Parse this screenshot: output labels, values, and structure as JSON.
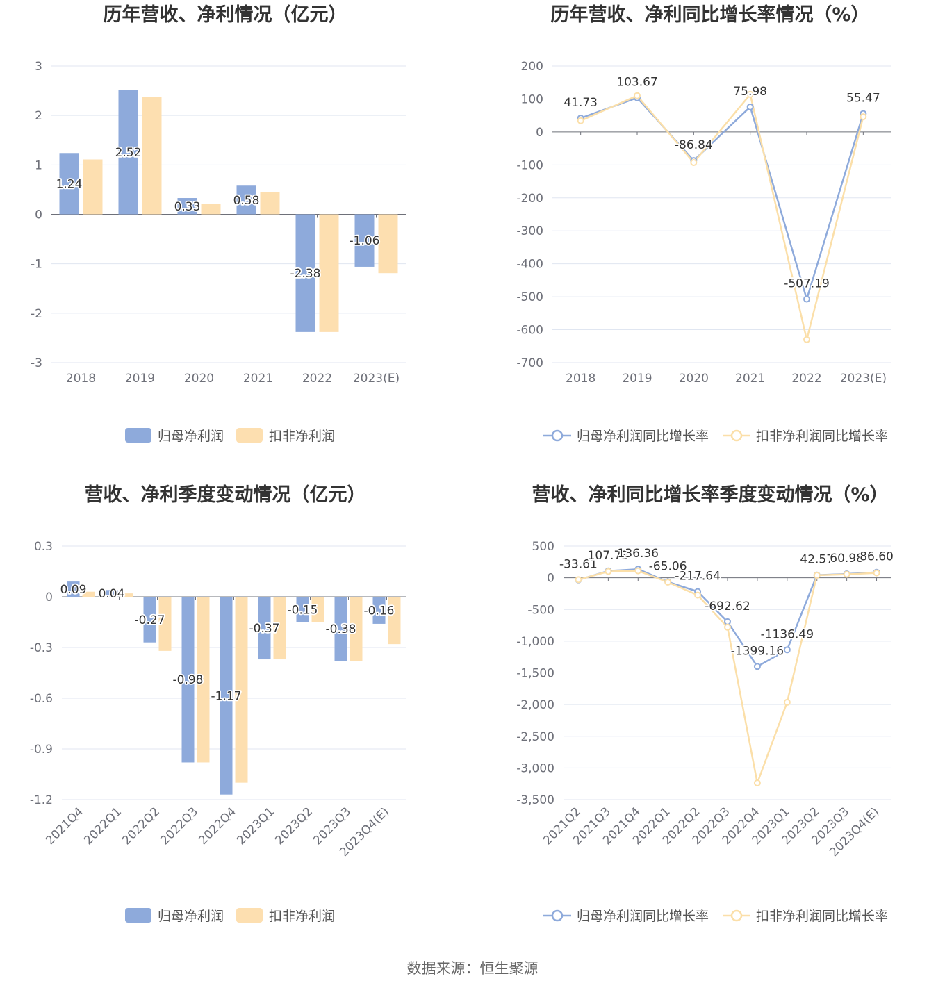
{
  "chart_data": [
    {
      "type": "bar",
      "title": "历年营收、净利情况（亿元）",
      "categories": [
        "2018",
        "2019",
        "2020",
        "2021",
        "2022",
        "2023(E)"
      ],
      "ylim": [
        -3,
        3
      ],
      "yticks": [
        "3",
        "2",
        "1",
        "0",
        "-1",
        "-2",
        "-3"
      ],
      "grid": true,
      "legend": "bottom",
      "series": [
        {
          "name": "归母净利润",
          "color": "#8eaadb",
          "data_labels": true,
          "values": [
            1.24,
            2.52,
            0.33,
            0.58,
            -2.38,
            -1.06
          ]
        },
        {
          "name": "扣非净利润",
          "color": "#fddfb0",
          "data_labels": false,
          "values": [
            1.11,
            2.38,
            0.21,
            0.45,
            -2.38,
            -1.19
          ]
        }
      ]
    },
    {
      "type": "line",
      "title": "历年营收、净利同比增长率情况（%）",
      "categories": [
        "2018",
        "2019",
        "2020",
        "2021",
        "2022",
        "2023(E)"
      ],
      "ylim": [
        -700,
        200
      ],
      "yticks": [
        "200",
        "100",
        "0",
        "-100",
        "-200",
        "-300",
        "-400",
        "-500",
        "-600",
        "-700"
      ],
      "grid": true,
      "legend": "bottom",
      "series": [
        {
          "name": "归母净利润同比增长率",
          "color": "#8eaadb",
          "data_labels": true,
          "values": [
            41.73,
            103.67,
            -86.84,
            75.98,
            -507.19,
            55.47
          ]
        },
        {
          "name": "扣非净利润同比增长率",
          "color": "#fbdfa9",
          "data_labels": false,
          "values": [
            34,
            110,
            -93,
            114,
            -630,
            46
          ]
        }
      ]
    },
    {
      "type": "bar",
      "title": "营收、净利季度变动情况（亿元）",
      "categories": [
        "2021Q4",
        "2022Q1",
        "2022Q2",
        "2022Q3",
        "2022Q4",
        "2023Q1",
        "2023Q2",
        "2023Q3",
        "2023Q4(E)"
      ],
      "ylim": [
        -1.2,
        0.3
      ],
      "yticks": [
        "0.3",
        "0",
        "-0.3",
        "-0.6",
        "-0.9",
        "-1.2"
      ],
      "grid": true,
      "legend": "bottom",
      "series": [
        {
          "name": "归母净利润",
          "color": "#8eaadb",
          "data_labels": true,
          "values": [
            0.09,
            0.04,
            -0.27,
            -0.98,
            -1.17,
            -0.37,
            -0.15,
            -0.38,
            -0.16
          ]
        },
        {
          "name": "扣非净利润",
          "color": "#fddfb0",
          "data_labels": false,
          "values": [
            0.03,
            0.02,
            -0.32,
            -0.98,
            -1.1,
            -0.37,
            -0.15,
            -0.38,
            -0.28
          ]
        }
      ]
    },
    {
      "type": "line",
      "title": "营收、净利同比增长率季度变动情况（%）",
      "categories": [
        "2021Q2",
        "2021Q3",
        "2021Q4",
        "2022Q1",
        "2022Q2",
        "2022Q3",
        "2022Q4",
        "2023Q1",
        "2023Q2",
        "2023Q3",
        "2023Q4(E)"
      ],
      "ylim": [
        -3500,
        500
      ],
      "yticks": [
        "500",
        "0",
        "-500",
        "-1,000",
        "-1,500",
        "-2,000",
        "-2,500",
        "-3,000",
        "-3,500"
      ],
      "grid": true,
      "legend": "bottom",
      "series": [
        {
          "name": "归母净利润同比增长率",
          "color": "#8eaadb",
          "data_labels": true,
          "values": [
            -33.61,
            107.73,
            136.36,
            -65.06,
            -217.64,
            -692.62,
            -1399.16,
            -1136.49,
            42.57,
            60.98,
            86.6
          ]
        },
        {
          "name": "扣非净利润同比增长率",
          "color": "#fbdfa9",
          "data_labels": false,
          "values": [
            -30,
            100,
            110,
            -70,
            -274,
            -780,
            -3237,
            -1964,
            40,
            55,
            77
          ]
        }
      ]
    }
  ],
  "footer": {
    "source": "数据来源：恒生聚源"
  }
}
